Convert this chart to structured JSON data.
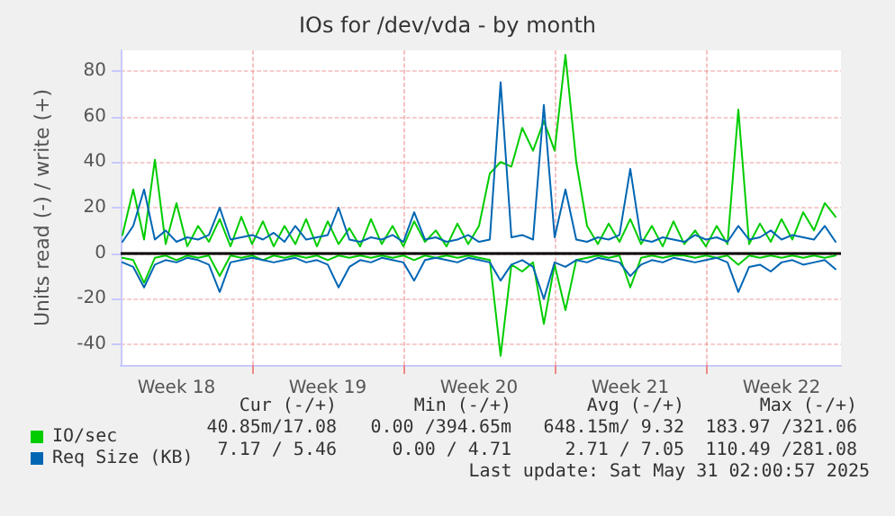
{
  "chart_data": {
    "type": "line",
    "title": "IOs for /dev/vda - by month",
    "ylabel": "Units read (-) / write (+)",
    "x": [
      "2025-04-29T00:00",
      "2025-04-29T12:00",
      "2025-04-30T00:00",
      "2025-04-30T12:00",
      "2025-05-01T00:00",
      "2025-05-01T12:00",
      "2025-05-02T00:00",
      "2025-05-02T12:00",
      "2025-05-03T00:00",
      "2025-05-03T12:00",
      "2025-05-04T00:00",
      "2025-05-04T12:00",
      "2025-05-05T00:00",
      "2025-05-05T12:00",
      "2025-05-06T00:00",
      "2025-05-06T12:00",
      "2025-05-07T00:00",
      "2025-05-07T12:00",
      "2025-05-08T00:00",
      "2025-05-08T12:00",
      "2025-05-09T00:00",
      "2025-05-09T12:00",
      "2025-05-10T00:00",
      "2025-05-10T12:00",
      "2025-05-11T00:00",
      "2025-05-11T12:00",
      "2025-05-12T00:00",
      "2025-05-12T12:00",
      "2025-05-13T00:00",
      "2025-05-13T12:00",
      "2025-05-14T00:00",
      "2025-05-14T12:00",
      "2025-05-15T00:00",
      "2025-05-15T12:00",
      "2025-05-16T00:00",
      "2025-05-16T12:00",
      "2025-05-17T00:00",
      "2025-05-17T12:00",
      "2025-05-18T00:00",
      "2025-05-18T12:00",
      "2025-05-19T00:00",
      "2025-05-19T12:00",
      "2025-05-20T00:00",
      "2025-05-20T12:00",
      "2025-05-21T00:00",
      "2025-05-21T12:00",
      "2025-05-22T00:00",
      "2025-05-22T12:00",
      "2025-05-23T00:00",
      "2025-05-23T12:00",
      "2025-05-24T00:00",
      "2025-05-24T12:00",
      "2025-05-25T00:00",
      "2025-05-25T12:00",
      "2025-05-26T00:00",
      "2025-05-26T12:00",
      "2025-05-27T00:00",
      "2025-05-27T12:00",
      "2025-05-28T00:00",
      "2025-05-28T12:00",
      "2025-05-29T00:00",
      "2025-05-29T12:00",
      "2025-05-30T00:00",
      "2025-05-30T12:00",
      "2025-05-31T00:00",
      "2025-05-31T12:00",
      "2025-06-01T00:00"
    ],
    "series": [
      {
        "name": "IO/sec",
        "color": "#00cc00",
        "values": [
          8,
          28,
          6,
          41,
          4,
          22,
          3,
          12,
          5,
          15,
          3,
          16,
          4,
          14,
          3,
          12,
          4,
          15,
          3,
          14,
          4,
          11,
          3,
          15,
          4,
          12,
          3,
          14,
          5,
          10,
          3,
          13,
          4,
          12,
          35,
          40,
          38,
          55,
          45,
          58,
          45,
          87,
          40,
          12,
          4,
          13,
          5,
          15,
          4,
          12,
          3,
          14,
          4,
          10,
          3,
          12,
          4,
          63,
          4,
          13,
          5,
          15,
          6,
          18,
          10,
          22,
          16
        ]
      },
      {
        "color": "#00cc00",
        "values": [
          -2,
          -3,
          -13,
          -2,
          -1,
          -3,
          -1,
          -2,
          -1,
          -10,
          -1,
          -2,
          -1,
          -3,
          -1,
          -2,
          -1,
          -2,
          -1,
          -3,
          -1,
          -2,
          -1,
          -2,
          -1,
          -2,
          -1,
          -3,
          -1,
          -2,
          -1,
          -2,
          -1,
          -2,
          -3,
          -45,
          -5,
          -8,
          -4,
          -31,
          -5,
          -25,
          -3,
          -2,
          -1,
          -2,
          -1,
          -15,
          -2,
          -1,
          -2,
          -1,
          -1,
          -2,
          -1,
          -2,
          -1,
          -5,
          -1,
          -2,
          -1,
          -2,
          -1,
          -2,
          -1,
          -2,
          -1
        ]
      },
      {
        "name": "Req Size (KB)",
        "color": "#0066b3",
        "values": [
          5,
          12,
          28,
          6,
          10,
          5,
          7,
          6,
          8,
          20,
          6,
          7,
          8,
          6,
          9,
          5,
          12,
          6,
          7,
          8,
          20,
          6,
          5,
          7,
          6,
          8,
          5,
          18,
          6,
          7,
          5,
          6,
          8,
          5,
          6,
          75,
          7,
          8,
          6,
          65,
          7,
          28,
          6,
          5,
          7,
          6,
          8,
          37,
          6,
          5,
          7,
          6,
          5,
          8,
          6,
          7,
          5,
          12,
          6,
          7,
          10,
          6,
          8,
          7,
          6,
          12,
          5
        ]
      },
      {
        "color": "#0066b3",
        "values": [
          -4,
          -6,
          -15,
          -5,
          -3,
          -4,
          -2,
          -3,
          -5,
          -17,
          -4,
          -3,
          -2,
          -3,
          -4,
          -3,
          -2,
          -4,
          -3,
          -5,
          -15,
          -6,
          -3,
          -4,
          -2,
          -3,
          -4,
          -12,
          -3,
          -2,
          -3,
          -4,
          -2,
          -3,
          -4,
          -12,
          -5,
          -3,
          -6,
          -20,
          -4,
          -6,
          -3,
          -4,
          -2,
          -3,
          -4,
          -10,
          -5,
          -3,
          -4,
          -2,
          -3,
          -4,
          -3,
          -2,
          -4,
          -17,
          -6,
          -5,
          -8,
          -4,
          -3,
          -5,
          -4,
          -3,
          -7
        ]
      }
    ],
    "xlim": [
      "2025-04-28T22:00",
      "2025-06-01T06:00"
    ],
    "xticks": [
      {
        "value": "2025-05-01T12:00",
        "label": "Week 18"
      },
      {
        "value": "2025-05-05T00:00",
        "label": null
      },
      {
        "value": "2025-05-08T12:00",
        "label": "Week 19"
      },
      {
        "value": "2025-05-12T00:00",
        "label": null
      },
      {
        "value": "2025-05-15T12:00",
        "label": "Week 20"
      },
      {
        "value": "2025-05-19T00:00",
        "label": null
      },
      {
        "value": "2025-05-22T12:00",
        "label": "Week 21"
      },
      {
        "value": "2025-05-26T00:00",
        "label": null
      },
      {
        "value": "2025-05-29T12:00",
        "label": "Week 22"
      }
    ],
    "ylim": [
      -49,
      89
    ],
    "yticks": [
      -40,
      -20,
      0,
      20,
      40,
      60,
      80
    ],
    "ref_lines": [
      {
        "axis": "y",
        "value": 0,
        "color": "#000000"
      }
    ],
    "grid": true,
    "legend": "bottom left",
    "marker": "none",
    "line_style": "solid",
    "annotations": [
      "Cur (-/+)",
      "Min (-/+)",
      "Avg (-/+)",
      "Max (-/+)",
      "40.85m/17.08",
      "0.00 /394.65m",
      "648.15m/ 9.32",
      "183.97 /321.06",
      "7.17 / 5.46",
      "0.00 / 4.71",
      "2.71 / 7.05",
      "110.49 /281.08",
      "Last update: Sat May 31 02:00:57 2025"
    ]
  }
}
